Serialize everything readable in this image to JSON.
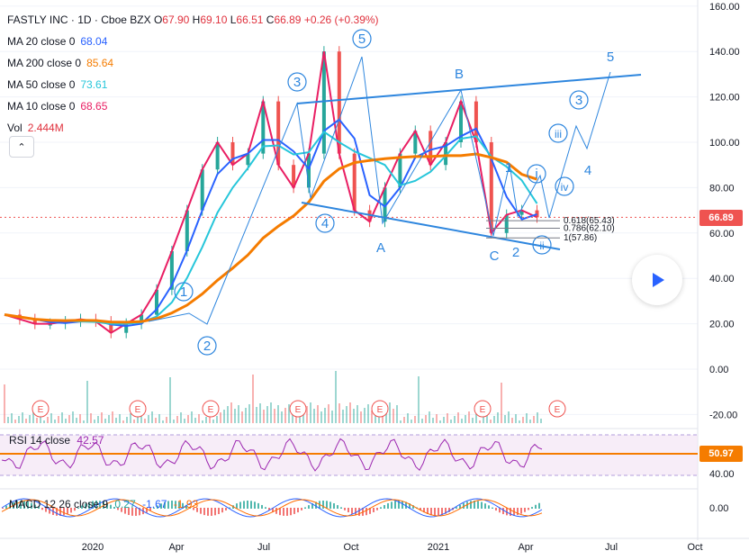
{
  "header": {
    "title": "FASTLY INC · 1D · Cboe BZX",
    "o_label": "O",
    "o": "67.90",
    "h_label": "H",
    "h": "69.10",
    "l_label": "L",
    "l": "66.51",
    "c_label": "C",
    "c": "66.89",
    "change": "+0.26 (+0.39%)"
  },
  "indicators": [
    {
      "label": "MA 20 close 0",
      "value": "68.04",
      "color": "#2962ff"
    },
    {
      "label": "MA 200 close 0",
      "value": "85.64",
      "color": "#f57c00"
    },
    {
      "label": "MA 50 close 0",
      "value": "73.61",
      "color": "#26c6da"
    },
    {
      "label": "MA 10 close 0",
      "value": "68.65",
      "color": "#e91e63"
    },
    {
      "label": "Vol",
      "value": "2.444M",
      "color": "#e0313d"
    }
  ],
  "rsi": {
    "label": "RSI 14 close",
    "value": "42.57",
    "line_level": "50.97"
  },
  "macd": {
    "label": "MACD 12 26 close 9",
    "v1": "0.27",
    "v2": "-1.67",
    "v3": "-1.93"
  },
  "price_axis": [
    "160.00",
    "140.00",
    "120.00",
    "100.00",
    "80.00",
    "60.00",
    "40.00",
    "20.00",
    "0.00",
    "-20.00"
  ],
  "rsi_axis": [
    "40.00"
  ],
  "macd_axis": [
    "0.00"
  ],
  "time_axis": [
    "2020",
    "Apr",
    "Jul",
    "Oct",
    "2021",
    "Apr",
    "Jul",
    "Oct"
  ],
  "last_price_tag": "66.89",
  "colors": {
    "up": "#26a69a",
    "down": "#ef5350",
    "wave": "#2e86de",
    "ma200": "#f57c00",
    "ma50": "#26c6da",
    "ma20": "#2962ff",
    "ma10": "#e91e63",
    "rsi": "#9c27b0"
  },
  "chart_data": {
    "type": "line",
    "ylim": [
      -20,
      160
    ],
    "wave_labels": [
      "1",
      "2",
      "3",
      "4",
      "5",
      "A",
      "B",
      "C",
      "1",
      "2",
      "3",
      "4",
      "5",
      "i",
      "ii",
      "iii",
      "iv"
    ],
    "fib_levels": [
      {
        "label": "0.618(65.43)",
        "value": 65.43
      },
      {
        "label": "0.786(62.10)",
        "value": 62.1
      },
      {
        "label": "1(57.86)",
        "value": 57.86
      }
    ],
    "earnings_markers": [
      "E",
      "E",
      "E",
      "E",
      "E",
      "E",
      "E"
    ],
    "series": [
      {
        "name": "Close",
        "values": [
          24,
          22,
          20,
          20,
          21,
          22,
          21,
          16,
          20,
          24,
          35,
          52,
          70,
          88,
          100,
          90,
          95,
          118,
          90,
          80,
          95,
          140,
          95,
          70,
          65,
          80,
          95,
          105,
          90,
          100,
          118,
          100,
          60,
          68,
          70,
          66.89
        ]
      }
    ]
  }
}
